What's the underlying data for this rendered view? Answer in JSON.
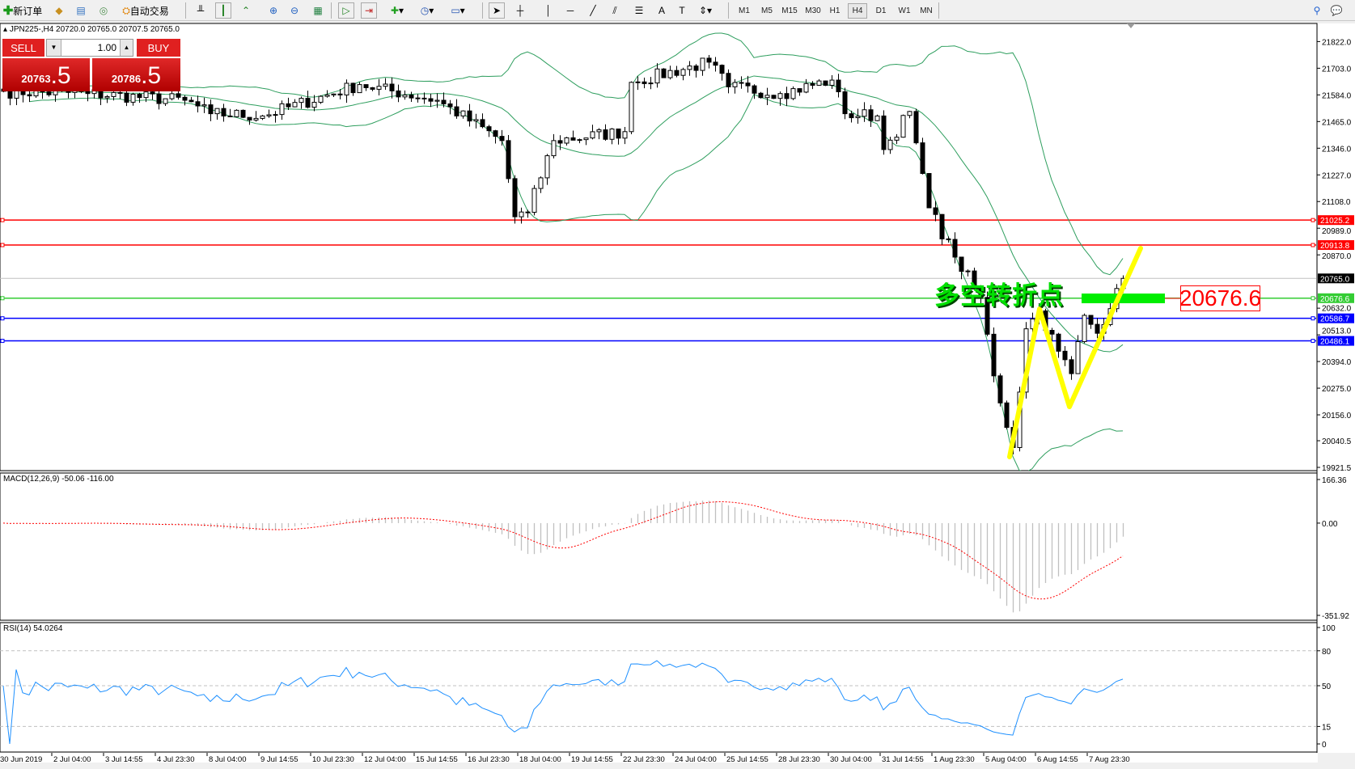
{
  "toolbar": {
    "new_order_label": "新订单",
    "auto_trading_label": "自动交易",
    "timeframes": [
      "M1",
      "M5",
      "M15",
      "M30",
      "H1",
      "H4",
      "D1",
      "W1",
      "MN"
    ],
    "selected_timeframe": "H4"
  },
  "chart_info": {
    "text": "JPN225-,H4  20720.0 20765.0 20707.5 20765.0"
  },
  "trade_panel": {
    "sell_label": "SELL",
    "buy_label": "BUY",
    "lot": "1.00",
    "sell_price_main": "20763",
    "sell_price_big": ".5",
    "buy_price_main": "20786",
    "buy_price_big": ".5"
  },
  "price_axis": {
    "ticks": [
      "21822.0",
      "21703.0",
      "21584.0",
      "21465.0",
      "21346.0",
      "21227.0",
      "21108.0",
      "20989.0",
      "20870.0",
      "20632.0",
      "20513.0",
      "20394.0",
      "20275.0",
      "20156.0",
      "20040.5",
      "19921.5"
    ],
    "range": [
      19921.5,
      21822.0
    ]
  },
  "levels": [
    {
      "price": "21025.2",
      "color": "#ff0000"
    },
    {
      "price": "20913.8",
      "color": "#ff0000"
    },
    {
      "price": "20765.0",
      "color": "#000000",
      "line": "#c0c0c0"
    },
    {
      "price": "20676.6",
      "color": "#33cc33"
    },
    {
      "price": "20586.7",
      "color": "#0000ff"
    },
    {
      "price": "20486.1",
      "color": "#0000ff"
    }
  ],
  "annotations": {
    "turning_point_text": "多空转折点",
    "price_box": "20676.6"
  },
  "price_path": [
    [
      0,
      21600
    ],
    [
      13,
      21590
    ],
    [
      28,
      21560
    ],
    [
      32,
      21500
    ],
    [
      40,
      21490
    ],
    [
      55,
      21630
    ],
    [
      67,
      21560
    ],
    [
      77,
      21380
    ],
    [
      79,
      21040
    ],
    [
      81,
      21060
    ],
    [
      85,
      21380
    ],
    [
      96,
      21420
    ],
    [
      97,
      21640
    ],
    [
      109,
      21730
    ],
    [
      112,
      21620
    ],
    [
      120,
      21590
    ],
    [
      128,
      21650
    ],
    [
      130,
      21500
    ],
    [
      135,
      21490
    ],
    [
      136,
      21340
    ],
    [
      140,
      21510
    ],
    [
      141,
      21370
    ],
    [
      143,
      21080
    ],
    [
      147,
      20860
    ],
    [
      151,
      20680
    ],
    [
      153,
      20330
    ],
    [
      156,
      20010
    ],
    [
      158,
      20540
    ],
    [
      160,
      20620
    ],
    [
      163,
      20440
    ],
    [
      165,
      20340
    ],
    [
      167,
      20600
    ],
    [
      169,
      20520
    ],
    [
      172,
      20720
    ],
    [
      173,
      20765
    ]
  ],
  "macd": {
    "label": "MACD(12,26,9) -50.06 -116.00",
    "axis": [
      "166.36",
      "0.00",
      "-351.92"
    ],
    "range": [
      -351.92,
      166.36
    ]
  },
  "rsi": {
    "label": "RSI(14) 54.0264",
    "axis": [
      "100",
      "80",
      "50",
      "15",
      "0"
    ]
  },
  "time_axis": [
    "30 Jun 2019",
    "2 Jul 04:00",
    "3 Jul 14:55",
    "4 Jul 23:30",
    "8 Jul 04:00",
    "9 Jul 14:55",
    "10 Jul 23:30",
    "12 Jul 04:00",
    "15 Jul 14:55",
    "16 Jul 23:30",
    "18 Jul 04:00",
    "19 Jul 14:55",
    "22 Jul 23:30",
    "24 Jul 04:00",
    "25 Jul 14:55",
    "28 Jul 23:30",
    "30 Jul 04:00",
    "31 Jul 14:55",
    "1 Aug 23:30",
    "5 Aug 04:00",
    "6 Aug 14:55",
    "7 Aug 23:30"
  ],
  "colors": {
    "bands": "#2e9e5e",
    "macd_signal": "#ff0000",
    "rsi": "#1e90ff",
    "zigzag": "#ffff00",
    "pivot_bar": "#00ee00"
  }
}
